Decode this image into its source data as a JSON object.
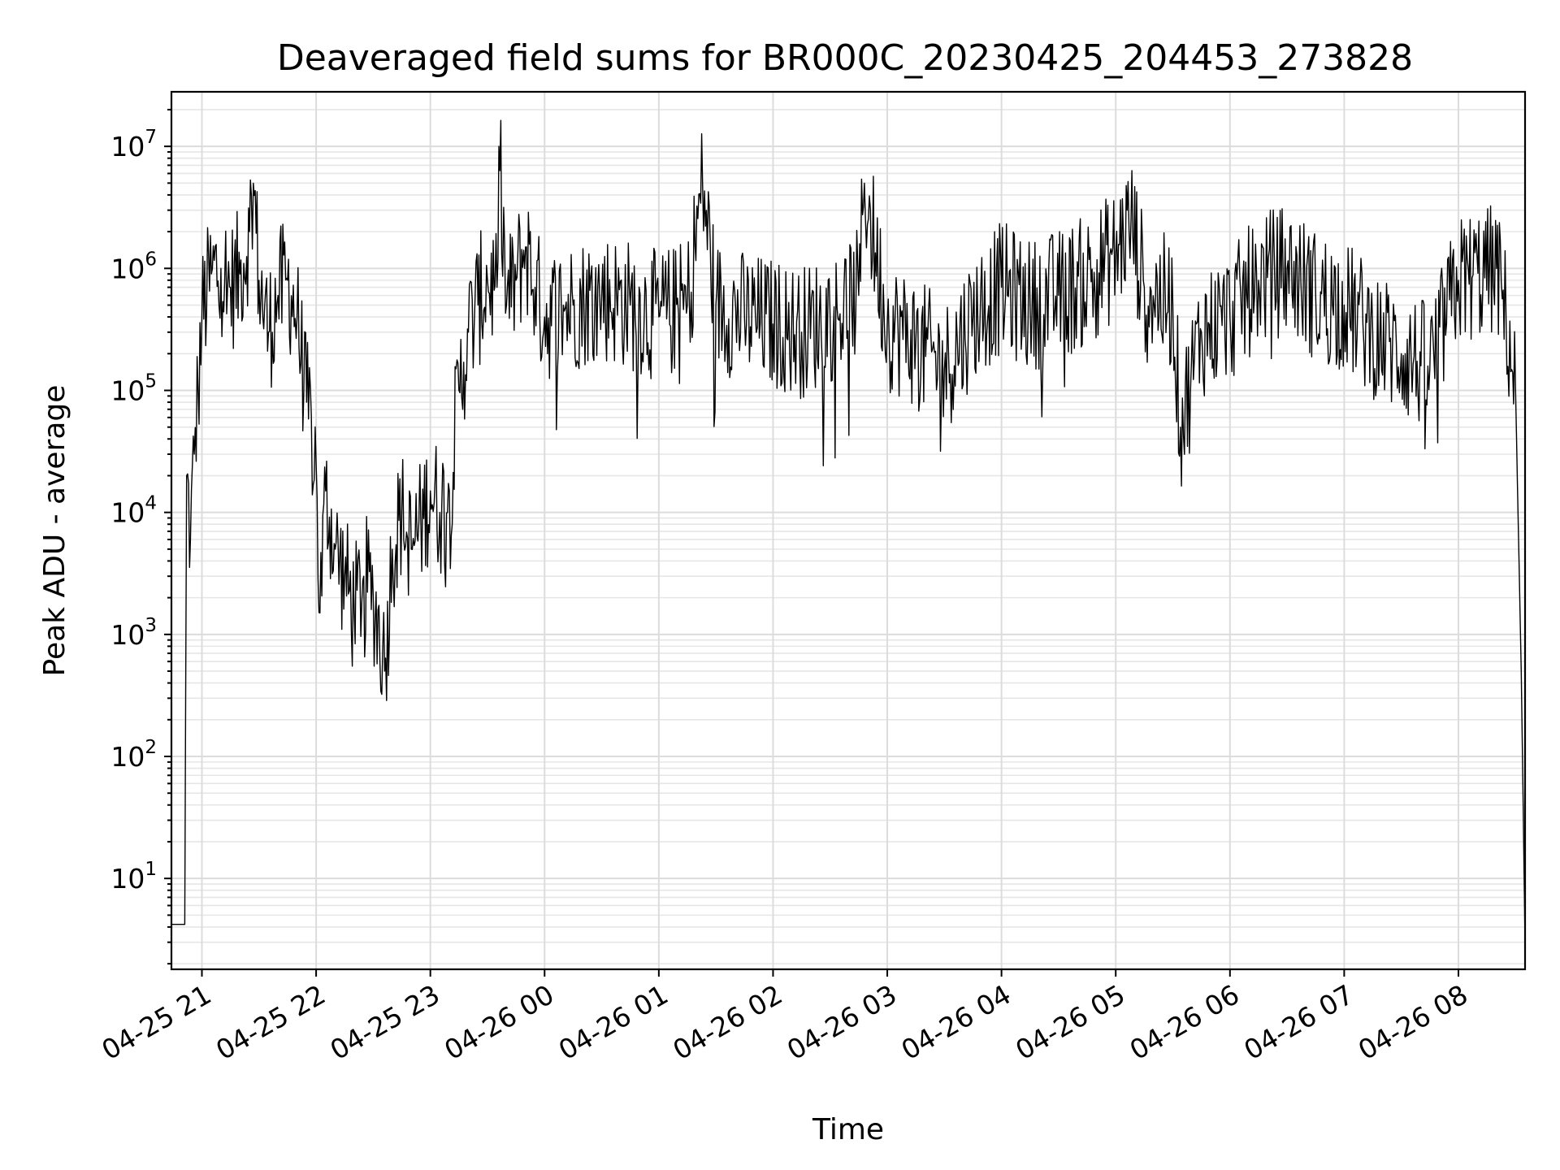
{
  "chart_data": {
    "type": "line",
    "title": "Deaveraged field sums for BR000C_20230425_204453_273828",
    "xlabel": "Time",
    "ylabel": "Peak ADU - average",
    "yscale": "log",
    "ylim": [
      1.8,
      28000000
    ],
    "xlim": [
      "2023-04-25 20:44",
      "2023-04-26 08:35"
    ],
    "grid": "major and minor",
    "legend": "none",
    "line_color": "#000000",
    "x_ticks": [
      {
        "t": "2023-04-25 21:00",
        "label": "04-25 21"
      },
      {
        "t": "2023-04-25 22:00",
        "label": "04-25 22"
      },
      {
        "t": "2023-04-25 23:00",
        "label": "04-25 23"
      },
      {
        "t": "2023-04-26 00:00",
        "label": "04-26 00"
      },
      {
        "t": "2023-04-26 01:00",
        "label": "04-26 01"
      },
      {
        "t": "2023-04-26 02:00",
        "label": "04-26 02"
      },
      {
        "t": "2023-04-26 03:00",
        "label": "04-26 03"
      },
      {
        "t": "2023-04-26 04:00",
        "label": "04-26 04"
      },
      {
        "t": "2023-04-26 05:00",
        "label": "04-26 05"
      },
      {
        "t": "2023-04-26 06:00",
        "label": "04-26 06"
      },
      {
        "t": "2023-04-26 07:00",
        "label": "04-26 07"
      },
      {
        "t": "2023-04-26 08:00",
        "label": "04-26 08"
      }
    ],
    "y_ticks": [
      {
        "value": 10,
        "base": "10",
        "exp": "1"
      },
      {
        "value": 100,
        "base": "10",
        "exp": "2"
      },
      {
        "value": 1000,
        "base": "10",
        "exp": "3"
      },
      {
        "value": 10000,
        "base": "10",
        "exp": "4"
      },
      {
        "value": 100000,
        "base": "10",
        "exp": "5"
      },
      {
        "value": 1000000,
        "base": "10",
        "exp": "6"
      },
      {
        "value": 10000000,
        "base": "10",
        "exp": "7"
      }
    ],
    "series": [
      {
        "x": [
          "2023-04-25 20:44",
          "2023-04-25 20:51",
          "2023-04-25 20:52",
          "2023-04-25 20:54",
          "2023-04-25 20:56",
          "2023-04-25 20:58",
          "2023-04-25 21:00",
          "2023-04-25 21:05",
          "2023-04-25 21:10",
          "2023-04-25 21:15",
          "2023-04-25 21:20",
          "2023-04-25 21:25",
          "2023-04-25 21:27",
          "2023-04-25 21:30",
          "2023-04-25 21:35",
          "2023-04-25 21:40",
          "2023-04-25 21:45",
          "2023-04-25 21:50",
          "2023-04-25 21:55",
          "2023-04-25 22:00",
          "2023-04-25 22:02",
          "2023-04-25 22:05",
          "2023-04-25 22:10",
          "2023-04-25 22:15",
          "2023-04-25 22:20",
          "2023-04-25 22:25",
          "2023-04-25 22:30",
          "2023-04-25 22:35",
          "2023-04-25 22:36",
          "2023-04-25 22:40",
          "2023-04-25 22:45",
          "2023-04-25 22:50",
          "2023-04-25 22:55",
          "2023-04-25 23:00",
          "2023-04-25 23:05",
          "2023-04-25 23:10",
          "2023-04-25 23:15",
          "2023-04-25 23:20",
          "2023-04-25 23:25",
          "2023-04-25 23:30",
          "2023-04-25 23:35",
          "2023-04-25 23:36",
          "2023-04-25 23:40",
          "2023-04-25 23:45",
          "2023-04-25 23:50",
          "2023-04-25 23:55",
          "2023-04-26 00:00",
          "2023-04-26 00:15",
          "2023-04-26 00:30",
          "2023-04-26 00:45",
          "2023-04-26 01:00",
          "2023-04-26 01:15",
          "2023-04-26 01:23",
          "2023-04-26 01:30",
          "2023-04-26 01:45",
          "2023-04-26 02:00",
          "2023-04-26 02:15",
          "2023-04-26 02:30",
          "2023-04-26 02:45",
          "2023-04-26 02:48",
          "2023-04-26 03:00",
          "2023-04-26 03:15",
          "2023-04-26 03:30",
          "2023-04-26 03:45",
          "2023-04-26 04:00",
          "2023-04-26 04:15",
          "2023-04-26 04:30",
          "2023-04-26 04:45",
          "2023-04-26 05:00",
          "2023-04-26 05:08",
          "2023-04-26 05:15",
          "2023-04-26 05:30",
          "2023-04-26 05:34",
          "2023-04-26 05:45",
          "2023-04-26 06:00",
          "2023-04-26 06:15",
          "2023-04-26 06:30",
          "2023-04-26 06:45",
          "2023-04-26 07:00",
          "2023-04-26 07:15",
          "2023-04-26 07:30",
          "2023-04-26 07:45",
          "2023-04-26 08:00",
          "2023-04-26 08:20",
          "2023-04-26 08:25",
          "2023-04-26 08:30",
          "2023-04-26 08:33",
          "2023-04-26 08:35"
        ],
        "y": [
          4.2,
          4.2,
          20000,
          6000,
          30000,
          100000,
          400000,
          900000,
          1000000,
          700000,
          900000,
          2000000,
          5000000,
          800000,
          300000,
          600000,
          800000,
          400000,
          80000,
          25000,
          1500,
          15000,
          5000,
          3000,
          1500,
          3000,
          2000,
          800,
          500,
          5000,
          10000,
          5000,
          8000,
          15000,
          10000,
          15000,
          100000,
          300000,
          500000,
          800000,
          700000,
          10000000,
          500000,
          800000,
          1500000,
          700000,
          400000,
          500000,
          600000,
          500000,
          400000,
          500000,
          5000000,
          500000,
          400000,
          350000,
          300000,
          400000,
          600000,
          5000000,
          350000,
          250000,
          150000,
          400000,
          700000,
          500000,
          600000,
          800000,
          1300000,
          2500000,
          700000,
          500000,
          50000,
          300000,
          400000,
          800000,
          1000000,
          600000,
          500000,
          300000,
          200000,
          150000,
          800000,
          1000000,
          400000,
          100000,
          500,
          3
        ]
      }
    ]
  }
}
